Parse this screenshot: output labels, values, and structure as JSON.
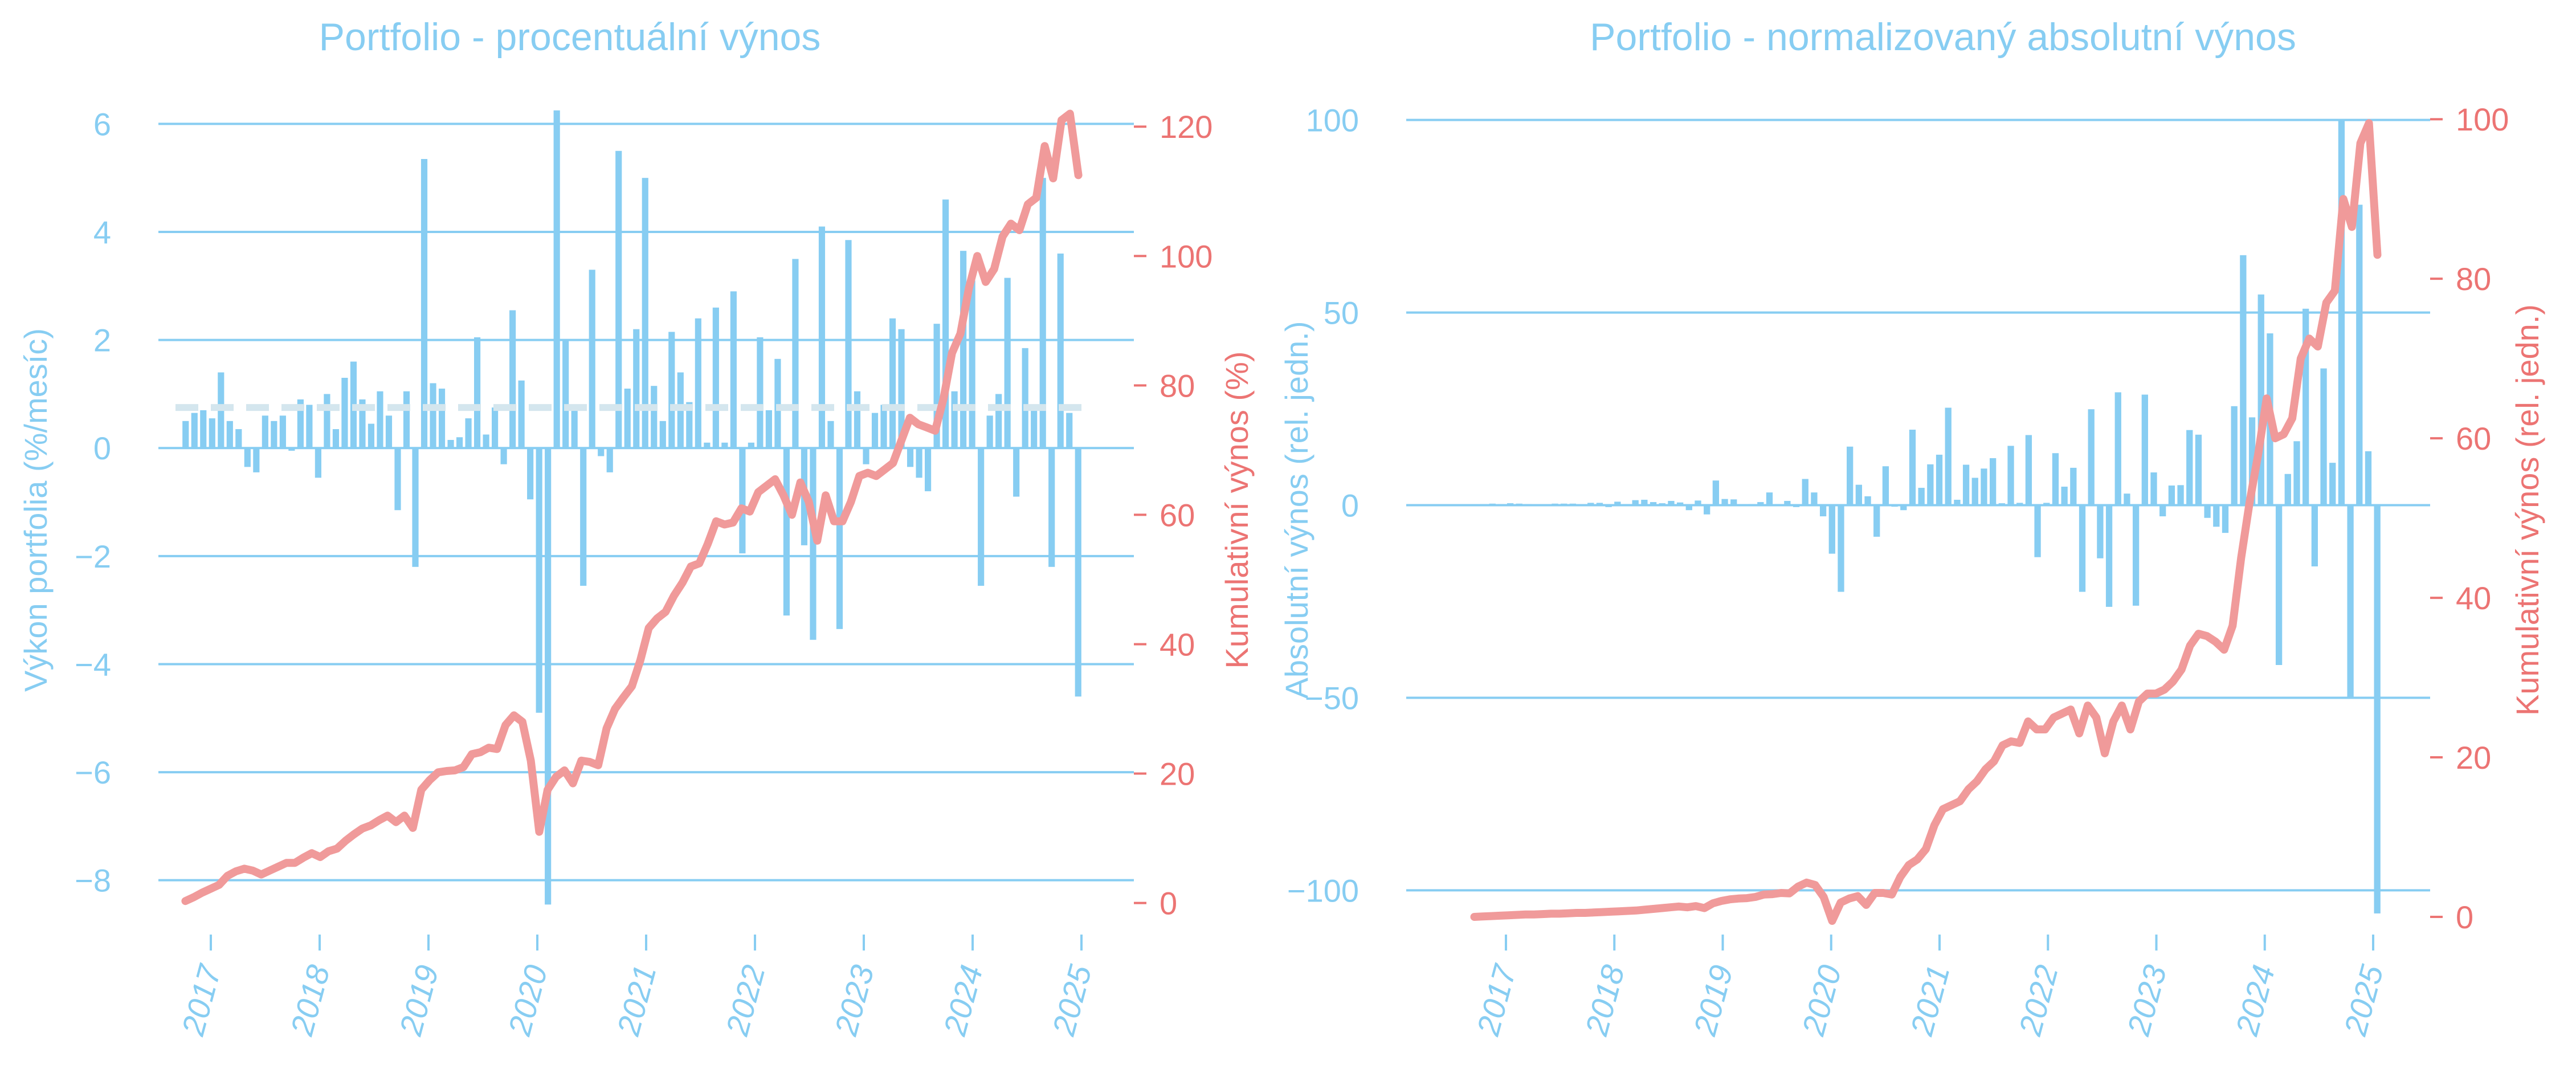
{
  "chart_data": [
    {
      "type": "bar+line",
      "title": "Portfolio - procentuální výnos",
      "ylabel_left": "Výkon portfolia (%/mesíc)",
      "ylabel_right": "Kumulativní výnos (%)",
      "xticks": [
        "2017",
        "2018",
        "2019",
        "2020",
        "2021",
        "2022",
        "2023",
        "2024",
        "2025"
      ],
      "ylim_left": [
        -8.9,
        6.5
      ],
      "yticks_left": [
        6,
        4,
        2,
        0,
        -2,
        -4,
        -6,
        -8
      ],
      "ylim_right": [
        -4,
        124.6
      ],
      "yticks_right": [
        120,
        100,
        80,
        60,
        40,
        20,
        0
      ],
      "mean_line": 0.75,
      "x_start": "2016-09",
      "bars": {
        "name": "Výkon portfolia (%/mesíc)",
        "color": "#87cdf2",
        "values": [
          0.5,
          0.65,
          0.7,
          0.55,
          1.4,
          0.5,
          0.35,
          -0.35,
          -0.45,
          0.6,
          0.5,
          0.6,
          -0.05,
          0.9,
          0.8,
          -0.55,
          1.0,
          0.35,
          1.3,
          1.6,
          0.9,
          0.45,
          1.05,
          0.6,
          -1.15,
          1.05,
          -2.2,
          5.35,
          1.2,
          1.1,
          0.15,
          0.2,
          0.55,
          2.05,
          0.25,
          0.75,
          -0.3,
          2.55,
          1.25,
          -0.95,
          -4.9,
          -8.45,
          6.25,
          2.0,
          0.75,
          -2.55,
          3.3,
          -0.15,
          -0.45,
          5.5,
          1.1,
          2.2,
          5.0,
          1.15,
          0.5,
          2.15,
          1.4,
          0.85,
          2.4,
          0.1,
          2.6,
          0.1,
          2.9,
          -1.95,
          0.1,
          2.05,
          0.7,
          1.65,
          -3.1,
          3.5,
          -1.8,
          -3.55,
          4.1,
          0.5,
          -3.35,
          3.85,
          1.05,
          -0.3,
          0.65,
          0.8,
          2.4,
          2.2,
          -0.35,
          -0.55,
          -0.8,
          2.3,
          4.6,
          1.05,
          3.65,
          3.1,
          -2.55,
          0.6,
          1.0,
          3.15,
          -0.9,
          1.85,
          0.75,
          5.0,
          -2.2,
          3.6,
          0.65,
          -4.6
        ]
      },
      "line": {
        "name": "Kumulativní výnos (%)",
        "color": "#f09a9a",
        "values": [
          0.3,
          0.9,
          1.6,
          2.2,
          2.8,
          4.2,
          4.9,
          5.3,
          5.0,
          4.4,
          5.0,
          5.6,
          6.2,
          6.2,
          7.0,
          7.7,
          7.1,
          8.0,
          8.4,
          9.6,
          10.6,
          11.5,
          12.0,
          12.8,
          13.5,
          12.5,
          13.5,
          11.6,
          17.5,
          19.0,
          20.2,
          20.4,
          20.5,
          21.0,
          23.0,
          23.3,
          24.0,
          23.8,
          27.5,
          29.0,
          28.0,
          22.0,
          11.0,
          17.5,
          19.5,
          20.5,
          18.5,
          22.0,
          21.8,
          21.3,
          27.0,
          30.0,
          31.8,
          33.5,
          37.5,
          42.5,
          44.0,
          45.0,
          47.5,
          49.5,
          52.0,
          52.5,
          55.5,
          59.0,
          58.5,
          58.8,
          61.0,
          60.5,
          63.5,
          64.5,
          65.5,
          63.0,
          60.0,
          65.0,
          62.0,
          56.0,
          63.0,
          59.0,
          59.0,
          62.0,
          66.0,
          66.5,
          66.0,
          67.0,
          68.0,
          71.5,
          75.0,
          74.0,
          73.5,
          73.0,
          78.0,
          85.0,
          88.0,
          95.0,
          100.0,
          96.0,
          98.0,
          103.0,
          105.0,
          104.0,
          108.0,
          109.0,
          117.0,
          112.0,
          121.0,
          122.0,
          112.5
        ]
      }
    },
    {
      "type": "bar+line",
      "title": "Portfolio - normalizovaný absolutní výnos",
      "ylabel_left": "Absolutní výnos (rel. jedn.)",
      "ylabel_right": "Kumulativní výnos (rel. jedn.)",
      "xticks": [
        "2017",
        "2018",
        "2019",
        "2020",
        "2021",
        "2022",
        "2023",
        "2024",
        "2025"
      ],
      "ylim_left": [
        -110,
        106
      ],
      "yticks_left": [
        100,
        50,
        0,
        -50,
        -100
      ],
      "ylim_right": [
        -1.5,
        102.8
      ],
      "yticks_right": [
        100,
        80,
        60,
        40,
        20,
        0
      ],
      "x_start": "2016-08",
      "bars": {
        "name": "Absolutní výnos (rel. jedn.)",
        "color": "#87cdf2",
        "values": [
          0.2,
          0.3,
          0.4,
          0.3,
          0.5,
          0.4,
          0.3,
          -0.3,
          -0.3,
          0.4,
          0.4,
          0.4,
          0.0,
          0.6,
          0.6,
          -0.5,
          0.9,
          0.3,
          1.3,
          1.4,
          0.8,
          0.5,
          1.1,
          0.7,
          -1.3,
          1.2,
          -2.4,
          6.4,
          1.6,
          1.5,
          0.2,
          0.3,
          0.8,
          3.3,
          0.3,
          1.1,
          -0.5,
          6.8,
          3.3,
          -2.9,
          -12.6,
          -22.5,
          15.2,
          5.3,
          2.3,
          -8.2,
          10.1,
          -0.4,
          -1.3,
          19.6,
          4.5,
          10.6,
          13.1,
          25.3,
          1.4,
          10.5,
          7.1,
          9.5,
          12.2,
          0.5,
          15.4,
          0.6,
          18.2,
          -13.5,
          0.6,
          13.5,
          4.8,
          9.7,
          -22.5,
          24.9,
          -13.8,
          -26.4,
          29.3,
          3.0,
          -26.1,
          28.7,
          8.5,
          -2.9,
          5.1,
          5.2,
          19.5,
          18.3,
          -3.3,
          -5.6,
          -7.2,
          25.7,
          64.9,
          22.8,
          54.7,
          44.6,
          -41.5,
          8.1,
          16.6,
          51.0,
          -15.9,
          35.5,
          11.0,
          100.0,
          -50.0,
          78.0,
          14.0,
          -106.0
        ]
      },
      "line": {
        "name": "Kumulativní výnos (rel. jedn.)",
        "color": "#f09a9a",
        "values": [
          0.0,
          0.05,
          0.1,
          0.15,
          0.2,
          0.25,
          0.3,
          0.3,
          0.35,
          0.4,
          0.4,
          0.45,
          0.5,
          0.5,
          0.55,
          0.6,
          0.65,
          0.7,
          0.75,
          0.8,
          0.9,
          1.0,
          1.1,
          1.2,
          1.3,
          1.2,
          1.35,
          1.1,
          1.7,
          2.0,
          2.2,
          2.3,
          2.35,
          2.5,
          2.8,
          2.85,
          3.0,
          2.95,
          3.8,
          4.3,
          4.0,
          2.5,
          -0.5,
          1.8,
          2.3,
          2.6,
          1.5,
          3.0,
          3.0,
          2.8,
          5.0,
          6.5,
          7.2,
          8.5,
          11.5,
          13.5,
          14.0,
          14.5,
          16.0,
          17.0,
          18.5,
          19.5,
          21.5,
          22.0,
          21.8,
          24.5,
          23.5,
          23.5,
          25.0,
          25.5,
          26.0,
          23.0,
          26.5,
          25.0,
          20.5,
          24.5,
          26.5,
          23.5,
          27.0,
          28.0,
          28.0,
          28.5,
          29.5,
          31.0,
          34.0,
          35.5,
          35.2,
          34.5,
          33.5,
          36.5,
          45.0,
          52.0,
          58.0,
          65.0,
          60.0,
          60.5,
          62.5,
          70.0,
          72.5,
          71.5,
          77.0,
          78.5,
          90.0,
          86.5,
          97.0,
          99.5,
          83.0
        ]
      }
    }
  ]
}
